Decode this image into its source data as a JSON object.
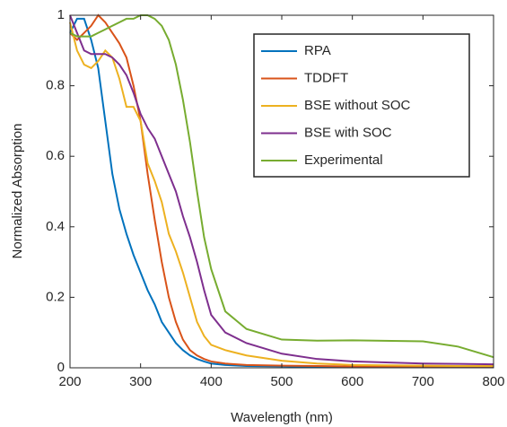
{
  "chart_data": {
    "type": "line",
    "x_label": "Wavelength (nm)",
    "y_label": "Normalized Absorption",
    "x": [
      200,
      210,
      220,
      230,
      240,
      250,
      260,
      270,
      280,
      290,
      300,
      310,
      320,
      330,
      340,
      350,
      360,
      370,
      380,
      390,
      400,
      420,
      450,
      500,
      550,
      600,
      700,
      750,
      800
    ],
    "series": [
      {
        "name": "RPA",
        "color": "#0072BD",
        "values": [
          0.95,
          0.99,
          0.99,
          0.93,
          0.85,
          0.7,
          0.55,
          0.45,
          0.38,
          0.32,
          0.27,
          0.22,
          0.18,
          0.13,
          0.1,
          0.07,
          0.05,
          0.035,
          0.025,
          0.018,
          0.012,
          0.008,
          0.005,
          0.004,
          0.003,
          0.003,
          0.003,
          0.003,
          0.003
        ]
      },
      {
        "name": "TDDFT",
        "color": "#D95319",
        "values": [
          0.95,
          0.93,
          0.95,
          0.97,
          1.0,
          0.98,
          0.95,
          0.92,
          0.88,
          0.8,
          0.7,
          0.55,
          0.42,
          0.3,
          0.2,
          0.13,
          0.08,
          0.05,
          0.035,
          0.025,
          0.018,
          0.012,
          0.008,
          0.006,
          0.005,
          0.004,
          0.004,
          0.004,
          0.004
        ]
      },
      {
        "name": "BSE without SOC",
        "color": "#EDB120",
        "values": [
          0.98,
          0.9,
          0.86,
          0.85,
          0.87,
          0.9,
          0.88,
          0.82,
          0.74,
          0.74,
          0.7,
          0.58,
          0.53,
          0.47,
          0.38,
          0.33,
          0.27,
          0.2,
          0.13,
          0.09,
          0.065,
          0.05,
          0.035,
          0.02,
          0.012,
          0.008,
          0.006,
          0.005,
          0.005
        ]
      },
      {
        "name": "BSE with SOC",
        "color": "#7E2F8E",
        "values": [
          1.0,
          0.95,
          0.9,
          0.89,
          0.89,
          0.89,
          0.88,
          0.86,
          0.83,
          0.78,
          0.72,
          0.68,
          0.65,
          0.6,
          0.55,
          0.5,
          0.43,
          0.37,
          0.3,
          0.22,
          0.15,
          0.1,
          0.07,
          0.04,
          0.025,
          0.018,
          0.012,
          0.011,
          0.01
        ]
      },
      {
        "name": "Experimental",
        "color": "#77AC30",
        "values": [
          0.95,
          0.94,
          0.94,
          0.94,
          0.95,
          0.96,
          0.97,
          0.98,
          0.99,
          0.99,
          1.0,
          1.0,
          0.99,
          0.97,
          0.93,
          0.86,
          0.76,
          0.64,
          0.5,
          0.37,
          0.28,
          0.16,
          0.11,
          0.08,
          0.077,
          0.078,
          0.075,
          0.06,
          0.03
        ]
      }
    ],
    "xlim": [
      200,
      800
    ],
    "xticks": [
      200,
      300,
      400,
      500,
      600,
      700,
      800
    ],
    "ylim": [
      0,
      1
    ],
    "yticks": [
      0,
      0.2,
      0.4,
      0.6,
      0.8,
      1
    ],
    "legend": "upper-right"
  }
}
